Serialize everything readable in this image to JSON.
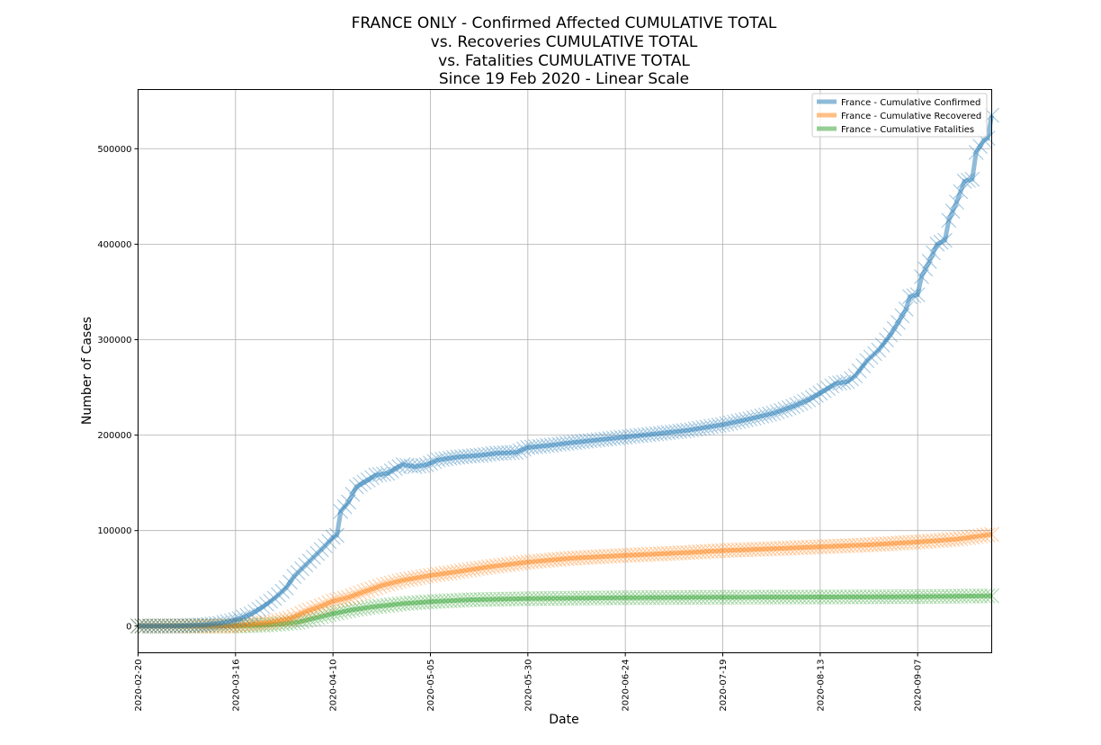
{
  "chart_data": {
    "type": "line",
    "title_lines": [
      "FRANCE ONLY - Confirmed Affected CUMULATIVE TOTAL",
      "vs. Recoveries CUMULATIVE TOTAL",
      "vs. Fatalities CUMULATIVE TOTAL",
      "Since 19 Feb 2020 - Linear Scale"
    ],
    "xlabel": "Date",
    "ylabel": "Number of Cases",
    "xlim": [
      "2020-02-20",
      "2020-09-26"
    ],
    "ylim": [
      -28000,
      562000
    ],
    "x_ticks": [
      "2020-02-20",
      "2020-03-16",
      "2020-04-10",
      "2020-05-05",
      "2020-05-30",
      "2020-06-24",
      "2020-07-19",
      "2020-08-13",
      "2020-09-07"
    ],
    "y_ticks": [
      "0",
      "100000",
      "200000",
      "300000",
      "400000",
      "500000"
    ],
    "grid": true,
    "legend_position": "top-right",
    "marker": "x",
    "series": [
      {
        "name": "France - Cumulative Confirmed",
        "color": "#1f77b4",
        "points": [
          [
            "2020-02-20",
            0
          ],
          [
            "2020-03-01",
            130
          ],
          [
            "2020-03-08",
            1100
          ],
          [
            "2020-03-12",
            2900
          ],
          [
            "2020-03-15",
            5400
          ],
          [
            "2020-03-17",
            7700
          ],
          [
            "2020-03-20",
            12600
          ],
          [
            "2020-03-23",
            20000
          ],
          [
            "2020-03-26",
            29000
          ],
          [
            "2020-03-29",
            40000
          ],
          [
            "2020-03-31",
            52000
          ],
          [
            "2020-04-03",
            64000
          ],
          [
            "2020-04-06",
            76000
          ],
          [
            "2020-04-08",
            84000
          ],
          [
            "2020-04-10",
            93000
          ],
          [
            "2020-04-11",
            95000
          ],
          [
            "2020-04-12",
            120000
          ],
          [
            "2020-04-14",
            130000
          ],
          [
            "2020-04-16",
            146000
          ],
          [
            "2020-04-19",
            153000
          ],
          [
            "2020-04-21",
            158000
          ],
          [
            "2020-04-24",
            160000
          ],
          [
            "2020-04-26",
            165000
          ],
          [
            "2020-04-28",
            169000
          ],
          [
            "2020-05-01",
            167000
          ],
          [
            "2020-05-04",
            169000
          ],
          [
            "2020-05-07",
            174000
          ],
          [
            "2020-05-12",
            177000
          ],
          [
            "2020-05-18",
            179000
          ],
          [
            "2020-05-22",
            181000
          ],
          [
            "2020-05-27",
            182000
          ],
          [
            "2020-05-30",
            187000
          ],
          [
            "2020-06-04",
            189000
          ],
          [
            "2020-06-10",
            192000
          ],
          [
            "2020-06-17",
            195000
          ],
          [
            "2020-06-24",
            198000
          ],
          [
            "2020-07-01",
            201000
          ],
          [
            "2020-07-10",
            205000
          ],
          [
            "2020-07-19",
            211000
          ],
          [
            "2020-07-26",
            217000
          ],
          [
            "2020-08-01",
            223000
          ],
          [
            "2020-08-06",
            230000
          ],
          [
            "2020-08-10",
            237000
          ],
          [
            "2020-08-13",
            244000
          ],
          [
            "2020-08-17",
            254000
          ],
          [
            "2020-08-20",
            256000
          ],
          [
            "2020-08-22",
            262000
          ],
          [
            "2020-08-25",
            278000
          ],
          [
            "2020-08-28",
            289000
          ],
          [
            "2020-08-31",
            305000
          ],
          [
            "2020-09-02",
            318000
          ],
          [
            "2020-09-04",
            332000
          ],
          [
            "2020-09-05",
            345000
          ],
          [
            "2020-09-07",
            347000
          ],
          [
            "2020-09-08",
            366000
          ],
          [
            "2020-09-10",
            382000
          ],
          [
            "2020-09-12",
            400000
          ],
          [
            "2020-09-14",
            404000
          ],
          [
            "2020-09-15",
            425000
          ],
          [
            "2020-09-17",
            444000
          ],
          [
            "2020-09-19",
            466000
          ],
          [
            "2020-09-21",
            468000
          ],
          [
            "2020-09-22",
            496000
          ],
          [
            "2020-09-24",
            509000
          ],
          [
            "2020-09-25",
            511000
          ],
          [
            "2020-09-26",
            535000
          ]
        ]
      },
      {
        "name": "France - Cumulative Recovered",
        "color": "#ff7f0e",
        "points": [
          [
            "2020-02-20",
            12
          ],
          [
            "2020-03-15",
            12
          ],
          [
            "2020-03-20",
            2000
          ],
          [
            "2020-03-25",
            4000
          ],
          [
            "2020-03-30",
            8000
          ],
          [
            "2020-04-03",
            15000
          ],
          [
            "2020-04-07",
            21000
          ],
          [
            "2020-04-10",
            26000
          ],
          [
            "2020-04-14",
            30000
          ],
          [
            "2020-04-18",
            36000
          ],
          [
            "2020-04-23",
            43000
          ],
          [
            "2020-04-28",
            48000
          ],
          [
            "2020-05-05",
            53000
          ],
          [
            "2020-05-12",
            57000
          ],
          [
            "2020-05-20",
            62000
          ],
          [
            "2020-05-30",
            67000
          ],
          [
            "2020-06-10",
            71000
          ],
          [
            "2020-06-24",
            74000
          ],
          [
            "2020-07-10",
            77000
          ],
          [
            "2020-07-19",
            79000
          ],
          [
            "2020-08-01",
            81000
          ],
          [
            "2020-08-13",
            83000
          ],
          [
            "2020-08-25",
            85000
          ],
          [
            "2020-09-07",
            88000
          ],
          [
            "2020-09-17",
            91000
          ],
          [
            "2020-09-26",
            96000
          ]
        ]
      },
      {
        "name": "France - Cumulative Fatalities",
        "color": "#2ca02c",
        "points": [
          [
            "2020-02-20",
            2
          ],
          [
            "2020-03-10",
            30
          ],
          [
            "2020-03-17",
            150
          ],
          [
            "2020-03-22",
            700
          ],
          [
            "2020-03-27",
            2000
          ],
          [
            "2020-04-01",
            4000
          ],
          [
            "2020-04-05",
            8000
          ],
          [
            "2020-04-10",
            13000
          ],
          [
            "2020-04-15",
            17000
          ],
          [
            "2020-04-20",
            20000
          ],
          [
            "2020-04-28",
            23500
          ],
          [
            "2020-05-05",
            25500
          ],
          [
            "2020-05-15",
            27500
          ],
          [
            "2020-05-30",
            28700
          ],
          [
            "2020-06-24",
            29700
          ],
          [
            "2020-07-19",
            30200
          ],
          [
            "2020-08-13",
            30400
          ],
          [
            "2020-09-07",
            30800
          ],
          [
            "2020-09-26",
            31600
          ]
        ]
      }
    ]
  }
}
